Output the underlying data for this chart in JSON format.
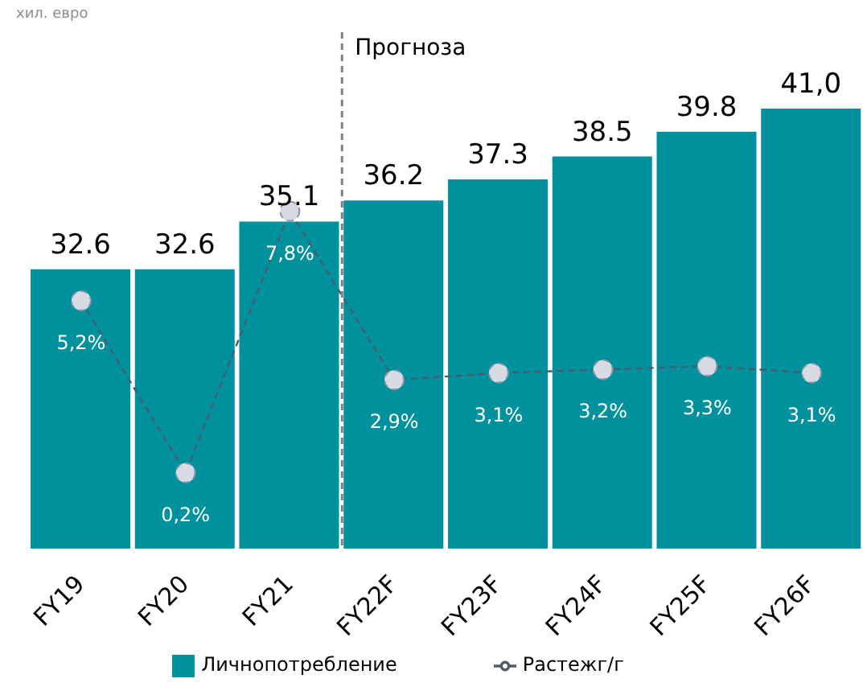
{
  "chart_data": {
    "type": "bar",
    "ylabel": "хил. евро",
    "categories": [
      "FY19",
      "FY20",
      "FY21",
      "FY22F",
      "FY23F",
      "FY24F",
      "FY25F",
      "FY26F"
    ],
    "series": [
      {
        "name": "Личнопотребление",
        "type": "bar",
        "color": "#00919f",
        "values": [
          32.6,
          32.6,
          35.1,
          36.2,
          37.3,
          38.5,
          39.8,
          41.0
        ],
        "value_labels": [
          "32.6",
          "32.6",
          "35.1",
          "36.2",
          "37.3",
          "38.5",
          "39.8",
          "41,0"
        ]
      },
      {
        "name": "Растежг/г",
        "type": "line",
        "axis": "y2",
        "color": "#4d5a6b",
        "line_style": "dashed",
        "marker": "circle",
        "values": [
          5.2,
          0.2,
          7.8,
          2.9,
          3.1,
          3.2,
          3.3,
          3.1
        ],
        "value_labels": [
          "5,2%",
          "0,2%",
          "7,8%",
          "2,9%",
          "3,1%",
          "3,2%",
          "3,3%",
          "3,1%"
        ]
      }
    ],
    "ylim": [
      18,
      45
    ],
    "y2lim": [
      -2,
      13
    ],
    "tick_labels": "x",
    "grid": false,
    "legend": "bottom",
    "annotations": [
      "Прогноза"
    ]
  }
}
